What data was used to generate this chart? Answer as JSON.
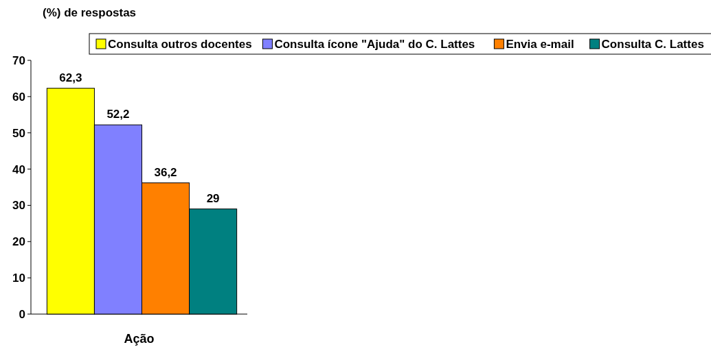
{
  "chart_data": {
    "type": "bar",
    "ylabel": "(%) de respostas",
    "xlabel": "Ação",
    "categories": [
      null
    ],
    "series": [
      {
        "name": "Consulta outros docentes",
        "color": "#ffff00",
        "values": [
          62.3
        ],
        "value_labels": [
          "62,3"
        ]
      },
      {
        "name": "Consulta ícone \"Ajuda\" do C. Lattes",
        "color": "#8080ff",
        "values": [
          52.2
        ],
        "value_labels": [
          "52,2"
        ]
      },
      {
        "name": "Envia e-mail",
        "color": "#ff8000",
        "values": [
          36.2
        ],
        "value_labels": [
          "36,2"
        ]
      },
      {
        "name": "Consulta C. Lattes",
        "color": "#008080",
        "values": [
          29
        ],
        "value_labels": [
          "29"
        ]
      }
    ],
    "ylim": [
      0,
      70
    ],
    "yticks": [
      0,
      10,
      20,
      30,
      40,
      50,
      60,
      70
    ],
    "legend": "top",
    "grid": false
  }
}
